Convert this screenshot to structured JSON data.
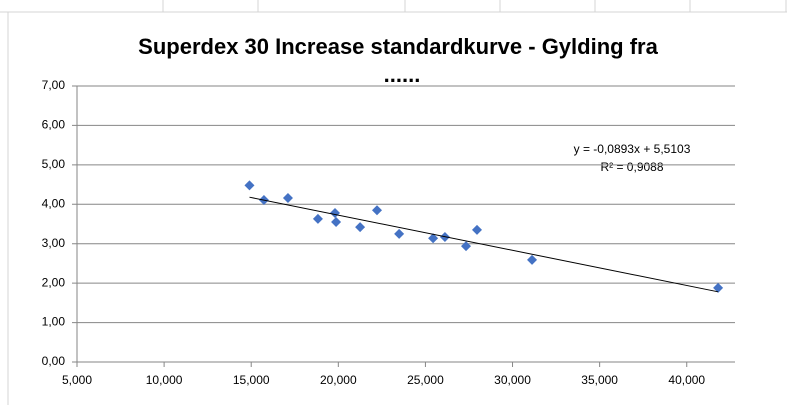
{
  "chart_data": {
    "type": "scatter",
    "title": [
      "Superdex 30 Increase standardkurve - Gylding fra",
      "......"
    ],
    "x": [
      14900,
      15730,
      17110,
      18830,
      19810,
      19870,
      21250,
      22220,
      23490,
      25440,
      26120,
      27330,
      27960,
      31120,
      41800
    ],
    "series": [
      {
        "color": "#4472c4",
        "values": [
          4.48,
          4.11,
          4.16,
          3.63,
          3.78,
          3.55,
          3.42,
          3.85,
          3.25,
          3.14,
          3.17,
          2.94,
          3.35,
          2.59,
          1.88
        ]
      }
    ],
    "trendline": {
      "x": [
        14900,
        41800
      ],
      "values": [
        4.18,
        1.78
      ],
      "color": "#000000",
      "equation": "y = -0,0893x + 5,5103",
      "r_squared": "R² = 0,9088"
    },
    "xlim": [
      5000,
      42770
    ],
    "ylim": [
      0,
      7
    ],
    "xticks": [
      {
        "value": 5000,
        "label": "5,000"
      },
      {
        "value": 10000,
        "label": "10,000"
      },
      {
        "value": 15000,
        "label": "15,000"
      },
      {
        "value": 20000,
        "label": "20,000"
      },
      {
        "value": 25000,
        "label": "25,000"
      },
      {
        "value": 30000,
        "label": "30,000"
      },
      {
        "value": 35000,
        "label": "35,000"
      },
      {
        "value": 40000,
        "label": "40,000"
      }
    ],
    "yticks": [
      {
        "value": 0,
        "label": "0,00"
      },
      {
        "value": 1,
        "label": "1,00"
      },
      {
        "value": 2,
        "label": "2,00"
      },
      {
        "value": 3,
        "label": "3,00"
      },
      {
        "value": 4,
        "label": "4,00"
      },
      {
        "value": 5,
        "label": "5,00"
      },
      {
        "value": 6,
        "label": "6,00"
      },
      {
        "value": 7,
        "label": "7,00"
      }
    ],
    "grid": true
  }
}
